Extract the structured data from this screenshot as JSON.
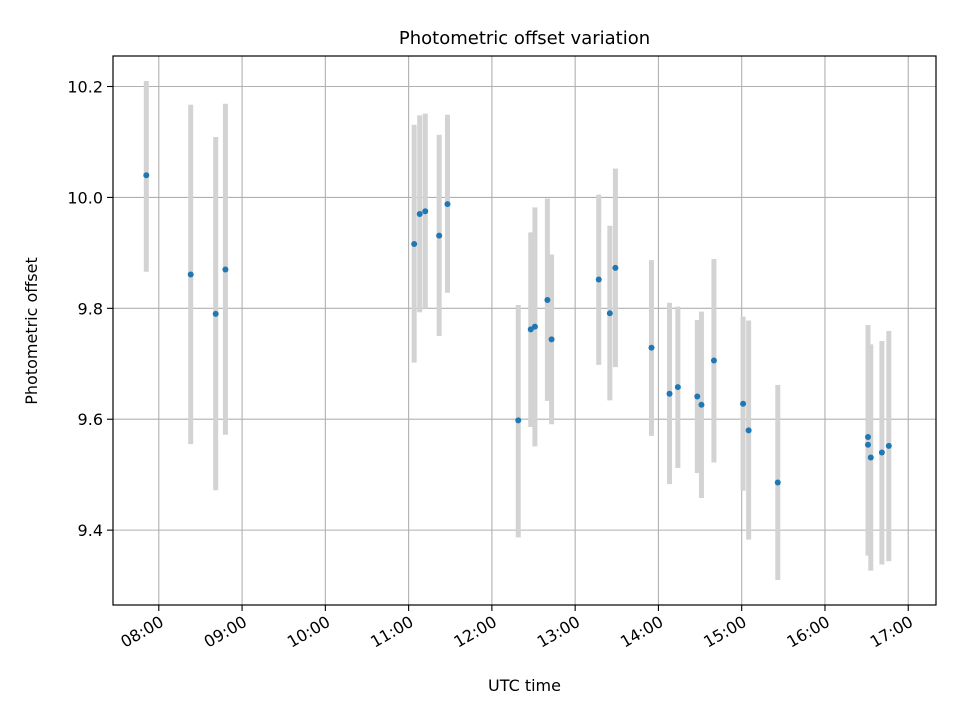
{
  "chart_data": {
    "type": "scatter",
    "title": "Photometric offset variation",
    "xlabel": "UTC time",
    "ylabel": "Photometric offset",
    "xlim": [
      "07:27",
      "17:20"
    ],
    "ylim": [
      9.265,
      10.255
    ],
    "grid": true,
    "x_ticks": [
      "08:00",
      "09:00",
      "10:00",
      "11:00",
      "12:00",
      "13:00",
      "14:00",
      "15:00",
      "16:00",
      "17:00"
    ],
    "y_ticks": [
      9.4,
      9.6,
      9.8,
      10.0,
      10.2
    ],
    "y_tick_labels": [
      "9.4",
      "9.6",
      "9.8",
      "10.0",
      "10.2"
    ],
    "marker_color": "#1f77b4",
    "errorbar_color": "#d3d3d3",
    "points": [
      {
        "time": "07:51",
        "y": 10.04,
        "yerr": [
          9.866,
          10.21
        ]
      },
      {
        "time": "08:23",
        "y": 9.861,
        "yerr": [
          9.555,
          10.167
        ]
      },
      {
        "time": "08:41",
        "y": 9.79,
        "yerr": [
          9.472,
          10.109
        ]
      },
      {
        "time": "08:48",
        "y": 9.87,
        "yerr": [
          9.572,
          10.169
        ]
      },
      {
        "time": "11:04",
        "y": 9.916,
        "yerr": [
          9.702,
          10.131
        ]
      },
      {
        "time": "11:08",
        "y": 9.97,
        "yerr": [
          9.793,
          10.148
        ]
      },
      {
        "time": "11:12",
        "y": 9.975,
        "yerr": [
          9.8,
          10.151
        ]
      },
      {
        "time": "11:22",
        "y": 9.931,
        "yerr": [
          9.75,
          10.113
        ]
      },
      {
        "time": "11:28",
        "y": 9.988,
        "yerr": [
          9.828,
          10.149
        ]
      },
      {
        "time": "12:19",
        "y": 9.598,
        "yerr": [
          9.387,
          9.806
        ]
      },
      {
        "time": "12:28",
        "y": 9.762,
        "yerr": [
          9.586,
          9.937
        ]
      },
      {
        "time": "12:31",
        "y": 9.767,
        "yerr": [
          9.551,
          9.982
        ]
      },
      {
        "time": "12:40",
        "y": 9.815,
        "yerr": [
          9.633,
          9.998
        ]
      },
      {
        "time": "12:43",
        "y": 9.744,
        "yerr": [
          9.591,
          9.897
        ]
      },
      {
        "time": "13:17",
        "y": 9.852,
        "yerr": [
          9.698,
          10.005
        ]
      },
      {
        "time": "13:25",
        "y": 9.791,
        "yerr": [
          9.634,
          9.949
        ]
      },
      {
        "time": "13:29",
        "y": 9.873,
        "yerr": [
          9.694,
          10.052
        ]
      },
      {
        "time": "13:55",
        "y": 9.729,
        "yerr": [
          9.57,
          9.887
        ]
      },
      {
        "time": "14:08",
        "y": 9.646,
        "yerr": [
          9.483,
          9.81
        ]
      },
      {
        "time": "14:14",
        "y": 9.658,
        "yerr": [
          9.512,
          9.803
        ]
      },
      {
        "time": "14:28",
        "y": 9.641,
        "yerr": [
          9.503,
          9.779
        ]
      },
      {
        "time": "14:31",
        "y": 9.626,
        "yerr": [
          9.458,
          9.794
        ]
      },
      {
        "time": "14:40",
        "y": 9.706,
        "yerr": [
          9.522,
          9.889
        ]
      },
      {
        "time": "15:01",
        "y": 9.628,
        "yerr": [
          9.471,
          9.785
        ]
      },
      {
        "time": "15:05",
        "y": 9.58,
        "yerr": [
          9.383,
          9.778
        ]
      },
      {
        "time": "15:26",
        "y": 9.486,
        "yerr": [
          9.31,
          9.662
        ]
      },
      {
        "time": "16:31",
        "y": 9.568,
        "yerr": [
          9.354,
          9.77
        ]
      },
      {
        "time": "16:31",
        "y": 9.554,
        "yerr": [
          9.357,
          9.769
        ]
      },
      {
        "time": "16:33",
        "y": 9.531,
        "yerr": [
          9.327,
          9.735
        ]
      },
      {
        "time": "16:41",
        "y": 9.54,
        "yerr": [
          9.338,
          9.741
        ]
      },
      {
        "time": "16:46",
        "y": 9.552,
        "yerr": [
          9.344,
          9.759
        ]
      }
    ]
  }
}
